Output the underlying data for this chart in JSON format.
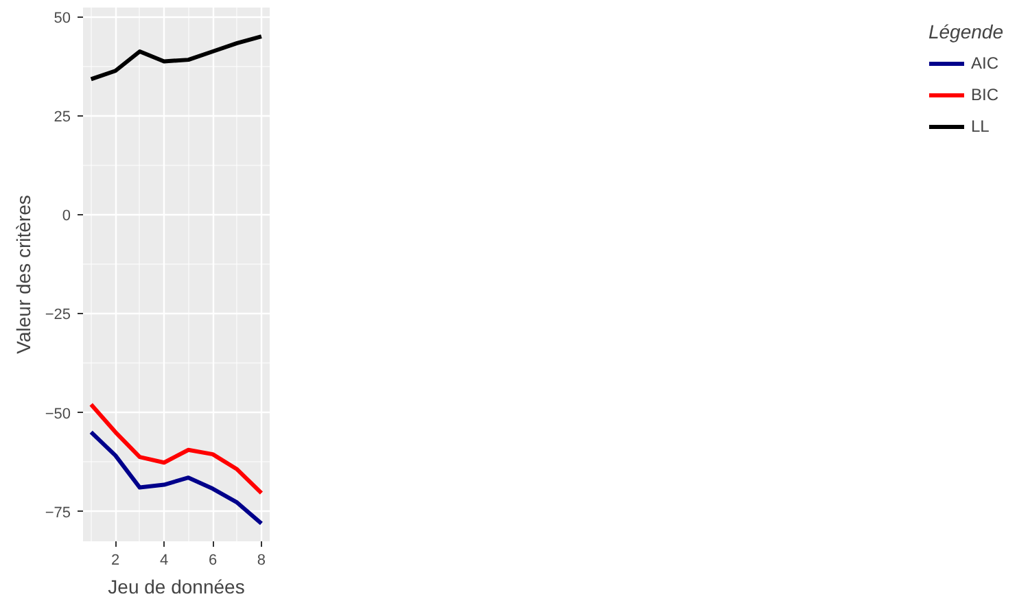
{
  "chart_data": {
    "type": "line",
    "xlabel": "Jeu de données",
    "ylabel": "Valeur des critères",
    "legend_title": "Légende",
    "x": [
      1,
      2,
      3,
      4,
      5,
      6,
      7,
      8
    ],
    "series": [
      {
        "name": "AIC",
        "color": "#00008b",
        "values": [
          -54.9,
          -60.8,
          -68.9,
          -68.2,
          -66.4,
          -69.2,
          -72.7,
          -78.0
        ]
      },
      {
        "name": "BIC",
        "color": "#ff0000",
        "values": [
          -47.9,
          -54.9,
          -61.2,
          -62.6,
          -59.4,
          -60.5,
          -64.3,
          -70.3
        ]
      },
      {
        "name": "LL",
        "color": "#000000",
        "values": [
          34.3,
          36.4,
          41.3,
          38.8,
          39.2,
          41.3,
          43.4,
          45.1
        ]
      }
    ],
    "xlim": [
      0.67,
      8.34
    ],
    "ylim": [
      -82.5,
      52.4
    ],
    "xticks": [
      2,
      4,
      6,
      8
    ],
    "yticks": [
      -75,
      -50,
      -25,
      0,
      25,
      50
    ],
    "grid": true,
    "legend": "right",
    "marker": "none",
    "line_style": "solid"
  }
}
